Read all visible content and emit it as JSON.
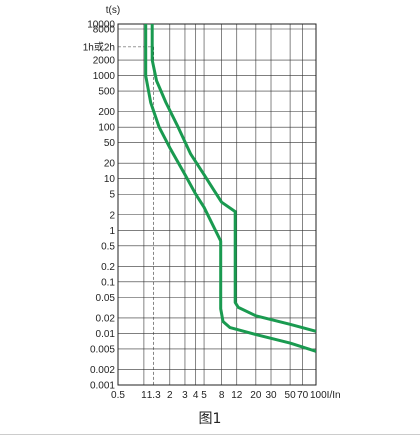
{
  "chart_data": {
    "type": "line",
    "title": "",
    "ylabel": "t(s)",
    "xlabel": "I/In",
    "x_scale": "log",
    "y_scale": "log",
    "xlim": [
      0.5,
      100
    ],
    "ylim": [
      0.001,
      10000
    ],
    "grid": true,
    "x_ticks": [
      {
        "value": 0.5,
        "label": "0.5"
      },
      {
        "value": 1,
        "label": "1"
      },
      {
        "value": 1.3,
        "label": "1.3"
      },
      {
        "value": 2,
        "label": "2"
      },
      {
        "value": 3,
        "label": "3"
      },
      {
        "value": 4,
        "label": "4"
      },
      {
        "value": 5,
        "label": "5"
      },
      {
        "value": 8,
        "label": "8"
      },
      {
        "value": 12,
        "label": "12"
      },
      {
        "value": 20,
        "label": "20"
      },
      {
        "value": 30,
        "label": "30"
      },
      {
        "value": 50,
        "label": "50"
      },
      {
        "value": 70,
        "label": "70"
      },
      {
        "value": 100,
        "label": "100"
      }
    ],
    "y_ticks": [
      {
        "value": 10000,
        "label": "10000"
      },
      {
        "value": 8000,
        "label": "8000"
      },
      {
        "value": 3600,
        "label": "1h或2h"
      },
      {
        "value": 2000,
        "label": "2000"
      },
      {
        "value": 1000,
        "label": "1000"
      },
      {
        "value": 500,
        "label": "500"
      },
      {
        "value": 200,
        "label": "200"
      },
      {
        "value": 100,
        "label": "100"
      },
      {
        "value": 50,
        "label": "50"
      },
      {
        "value": 20,
        "label": "20"
      },
      {
        "value": 10,
        "label": "10"
      },
      {
        "value": 5,
        "label": "5"
      },
      {
        "value": 2,
        "label": "2"
      },
      {
        "value": 1,
        "label": "1"
      },
      {
        "value": 0.5,
        "label": "0.5"
      },
      {
        "value": 0.2,
        "label": "0.2"
      },
      {
        "value": 0.1,
        "label": "0.1"
      },
      {
        "value": 0.05,
        "label": "0.05"
      },
      {
        "value": 0.02,
        "label": "0.02"
      },
      {
        "value": 0.01,
        "label": "0.01"
      },
      {
        "value": 0.005,
        "label": "0.005"
      },
      {
        "value": 0.002,
        "label": "0.002"
      },
      {
        "value": 0.001,
        "label": "0.001"
      }
    ],
    "reference_lines": [
      {
        "axis": "x",
        "value": 1.3,
        "style": "dashed"
      },
      {
        "axis": "y",
        "value": 3600,
        "style": "dashed"
      }
    ],
    "series": [
      {
        "color": "#1a9a50",
        "points": [
          [
            1.05,
            10000
          ],
          [
            1.05,
            1000
          ],
          [
            1.2,
            300
          ],
          [
            1.5,
            100
          ],
          [
            2,
            40
          ],
          [
            3,
            12
          ],
          [
            4,
            5
          ],
          [
            5,
            2.8
          ],
          [
            6,
            1.5
          ],
          [
            7.8,
            0.62
          ],
          [
            7.8,
            0.03
          ],
          [
            8.3,
            0.017
          ],
          [
            10,
            0.013
          ],
          [
            20,
            0.0095
          ],
          [
            50,
            0.0065
          ],
          [
            100,
            0.0045
          ]
        ]
      },
      {
        "color": "#1a9a50",
        "points": [
          [
            1.25,
            10000
          ],
          [
            1.25,
            2000
          ],
          [
            1.4,
            800
          ],
          [
            1.8,
            300
          ],
          [
            2.5,
            100
          ],
          [
            3.5,
            30
          ],
          [
            5,
            12
          ],
          [
            6.5,
            6
          ],
          [
            8,
            3.5
          ],
          [
            11.5,
            2.3
          ],
          [
            11.5,
            0.04
          ],
          [
            12.5,
            0.032
          ],
          [
            20,
            0.022
          ],
          [
            50,
            0.015
          ],
          [
            100,
            0.011
          ]
        ]
      }
    ]
  },
  "caption": "图1"
}
